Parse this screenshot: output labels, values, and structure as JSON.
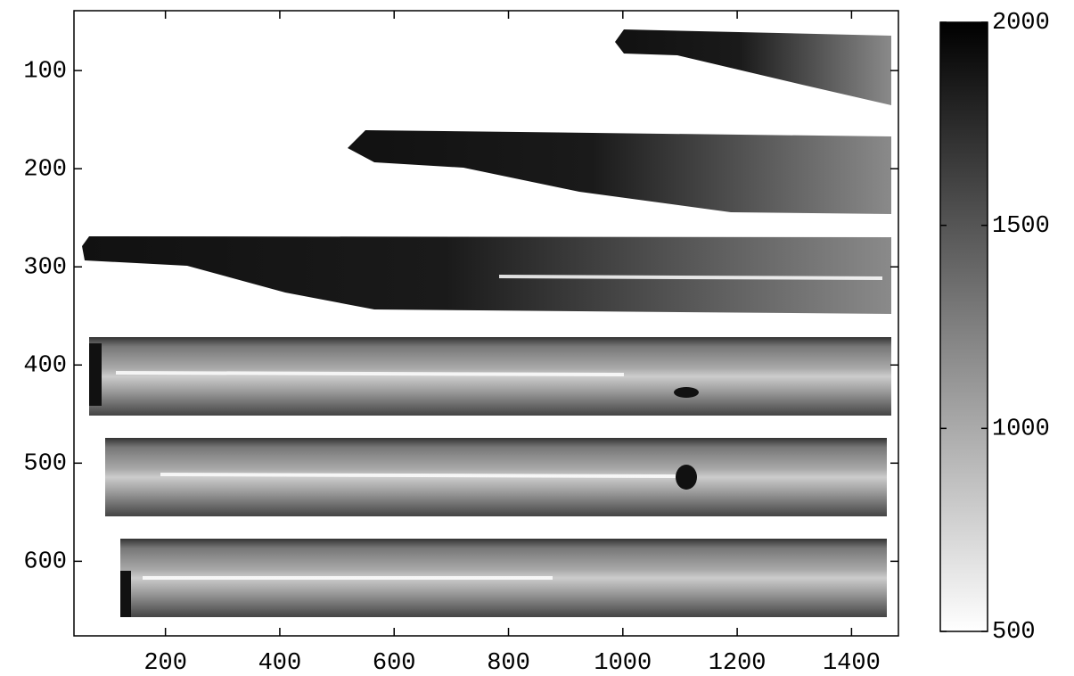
{
  "chart_data": {
    "type": "image",
    "xlim": [
      40,
      1482
    ],
    "xticks": [
      200,
      400,
      600,
      800,
      1000,
      1200,
      1400
    ],
    "ylim": [
      676,
      39
    ],
    "yticks": [
      100,
      200,
      300,
      400,
      500,
      600
    ],
    "colorbar": {
      "lim": [
        500,
        2000
      ],
      "ticks": [
        500,
        1000,
        1500,
        2000
      ],
      "colors": [
        "#ffffff",
        "#000000"
      ]
    }
  }
}
